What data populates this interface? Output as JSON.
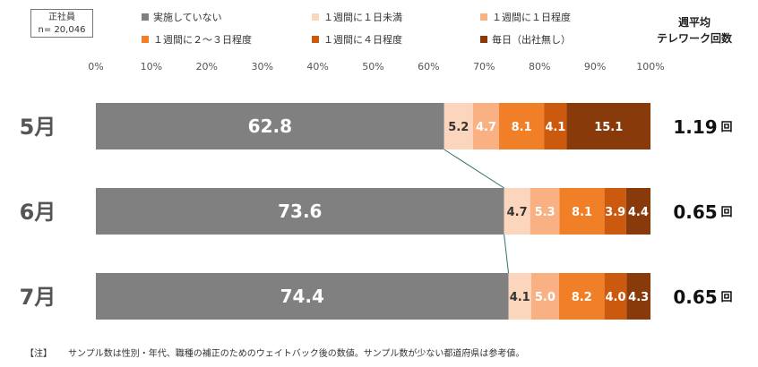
{
  "sample_box": {
    "line1": "正社員",
    "line2": "n= 20,046"
  },
  "legend": [
    {
      "label": "実施していない",
      "color": "#808080"
    },
    {
      "label": "１週間に１日未満",
      "color": "#fcd5bd"
    },
    {
      "label": "１週間に１日程度",
      "color": "#f9b183"
    },
    {
      "label": "１週間に２～３日程度",
      "color": "#f07f27"
    },
    {
      "label": "１週間に４日程度",
      "color": "#cc5a0e"
    },
    {
      "label": "毎日（出社無し）",
      "color": "#883a0a"
    }
  ],
  "avg_header": {
    "line1": "週平均",
    "line2": "テレワーク回数"
  },
  "chart_data": {
    "type": "bar",
    "orientation": "horizontal",
    "stacked": true,
    "xlim": [
      0,
      100
    ],
    "tick_labels": [
      "0%",
      "10%",
      "20%",
      "30%",
      "40%",
      "50%",
      "60%",
      "70%",
      "80%",
      "90%",
      "100%"
    ],
    "categories": [
      "5月",
      "6月",
      "7月"
    ],
    "series": [
      {
        "name": "実施していない",
        "values": [
          62.8,
          73.6,
          74.4
        ]
      },
      {
        "name": "１週間に１日未満",
        "values": [
          5.2,
          4.7,
          4.1
        ]
      },
      {
        "name": "１週間に１日程度",
        "values": [
          4.7,
          5.3,
          5.0
        ]
      },
      {
        "name": "１週間に２～３日程度",
        "values": [
          8.1,
          8.1,
          8.2
        ]
      },
      {
        "name": "１週間に４日程度",
        "values": [
          4.1,
          3.9,
          4.0
        ]
      },
      {
        "name": "毎日（出社無し）",
        "values": [
          15.1,
          4.4,
          4.3
        ]
      }
    ],
    "weekly_average": [
      "1.19",
      "0.65",
      "0.65"
    ],
    "weekly_average_unit": "回"
  },
  "footnote": {
    "prefix": "【注】",
    "text": "サンプル数は性別・年代、職種の補正のためのウェイトバック後の数値。サンプル数が少ない都道府県は参考値。"
  }
}
